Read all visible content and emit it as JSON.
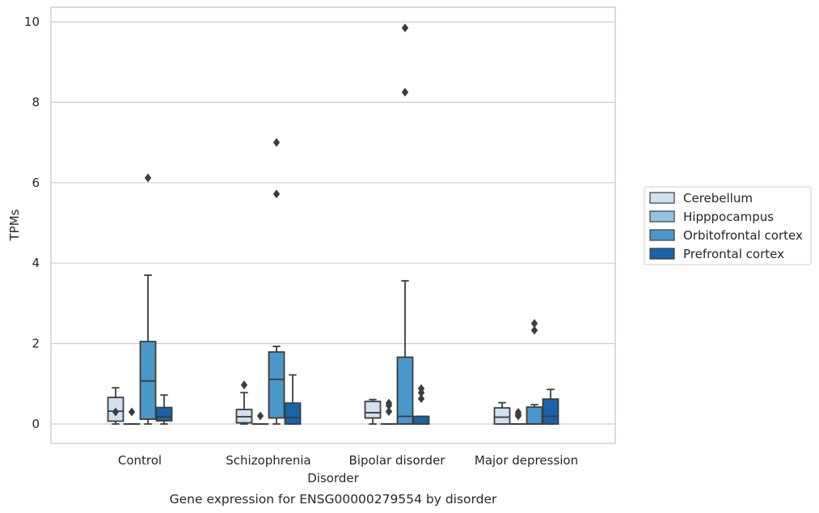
{
  "chart_data": {
    "type": "box",
    "caption": "Gene expression for ENSG00000279554 by disorder",
    "xlabel": "Disorder",
    "ylabel": "TPMs",
    "ylim": [
      -0.45,
      10.35
    ],
    "yticks": [
      0,
      2,
      4,
      6,
      8,
      10
    ],
    "grid": "horizontal",
    "legend_position": "right",
    "categories": [
      "Control",
      "Schizophrenia",
      "Bipolar disorder",
      "Major depression"
    ],
    "series": [
      {
        "name": "Cerebellum",
        "color": "#d0e1f2",
        "boxes": [
          {
            "whislo": 0.0,
            "q1": 0.07,
            "med": 0.32,
            "q3": 0.66,
            "whishi": 0.9,
            "fliers": [
              0.3
            ]
          },
          {
            "whislo": 0.0,
            "q1": 0.03,
            "med": 0.18,
            "q3": 0.36,
            "whishi": 0.78,
            "fliers": [
              0.97
            ]
          },
          {
            "whislo": 0.0,
            "q1": 0.15,
            "med": 0.28,
            "q3": 0.56,
            "whishi": 0.61,
            "fliers": []
          },
          {
            "whislo": 0.0,
            "q1": 0.0,
            "med": 0.17,
            "q3": 0.4,
            "whishi": 0.53,
            "fliers": []
          }
        ]
      },
      {
        "name": "Hipppocampus",
        "color": "#94c4df",
        "boxes": [
          {
            "whislo": 0.0,
            "q1": 0.0,
            "med": 0.0,
            "q3": 0.0,
            "whishi": 0.0,
            "fliers": [
              0.3
            ]
          },
          {
            "whislo": 0.0,
            "q1": 0.0,
            "med": 0.0,
            "q3": 0.0,
            "whishi": 0.0,
            "fliers": [
              0.2
            ]
          },
          {
            "whislo": 0.0,
            "q1": 0.0,
            "med": 0.0,
            "q3": 0.0,
            "whishi": 0.0,
            "fliers": [
              0.31,
              0.46,
              0.52
            ]
          },
          {
            "whislo": 0.0,
            "q1": 0.0,
            "med": 0.0,
            "q3": 0.0,
            "whishi": 0.0,
            "fliers": [
              0.2,
              0.24,
              0.29
            ]
          }
        ]
      },
      {
        "name": "Orbitofrontal cortex",
        "color": "#4a98c9",
        "boxes": [
          {
            "whislo": 0.0,
            "q1": 0.12,
            "med": 1.07,
            "q3": 2.05,
            "whishi": 3.7,
            "fliers": [
              6.12
            ]
          },
          {
            "whislo": 0.0,
            "q1": 0.15,
            "med": 1.11,
            "q3": 1.79,
            "whishi": 1.93,
            "fliers": [
              5.72,
              7.0
            ]
          },
          {
            "whislo": 0.0,
            "q1": 0.0,
            "med": 0.19,
            "q3": 1.66,
            "whishi": 3.56,
            "fliers": [
              8.25,
              9.85
            ]
          },
          {
            "whislo": 0.0,
            "q1": 0.0,
            "med": 0.0,
            "q3": 0.42,
            "whishi": 0.48,
            "fliers": [
              2.33,
              2.5
            ]
          }
        ]
      },
      {
        "name": "Prefrontal cortex",
        "color": "#1764ab",
        "boxes": [
          {
            "whislo": 0.0,
            "q1": 0.08,
            "med": 0.18,
            "q3": 0.41,
            "whishi": 0.72,
            "fliers": []
          },
          {
            "whislo": 0.0,
            "q1": 0.0,
            "med": 0.16,
            "q3": 0.52,
            "whishi": 1.22,
            "fliers": []
          },
          {
            "whislo": 0.0,
            "q1": 0.0,
            "med": 0.0,
            "q3": 0.19,
            "whishi": 0.19,
            "fliers": [
              0.63,
              0.78,
              0.88
            ]
          },
          {
            "whislo": 0.0,
            "q1": 0.0,
            "med": 0.19,
            "q3": 0.62,
            "whishi": 0.86,
            "fliers": []
          }
        ]
      }
    ]
  }
}
